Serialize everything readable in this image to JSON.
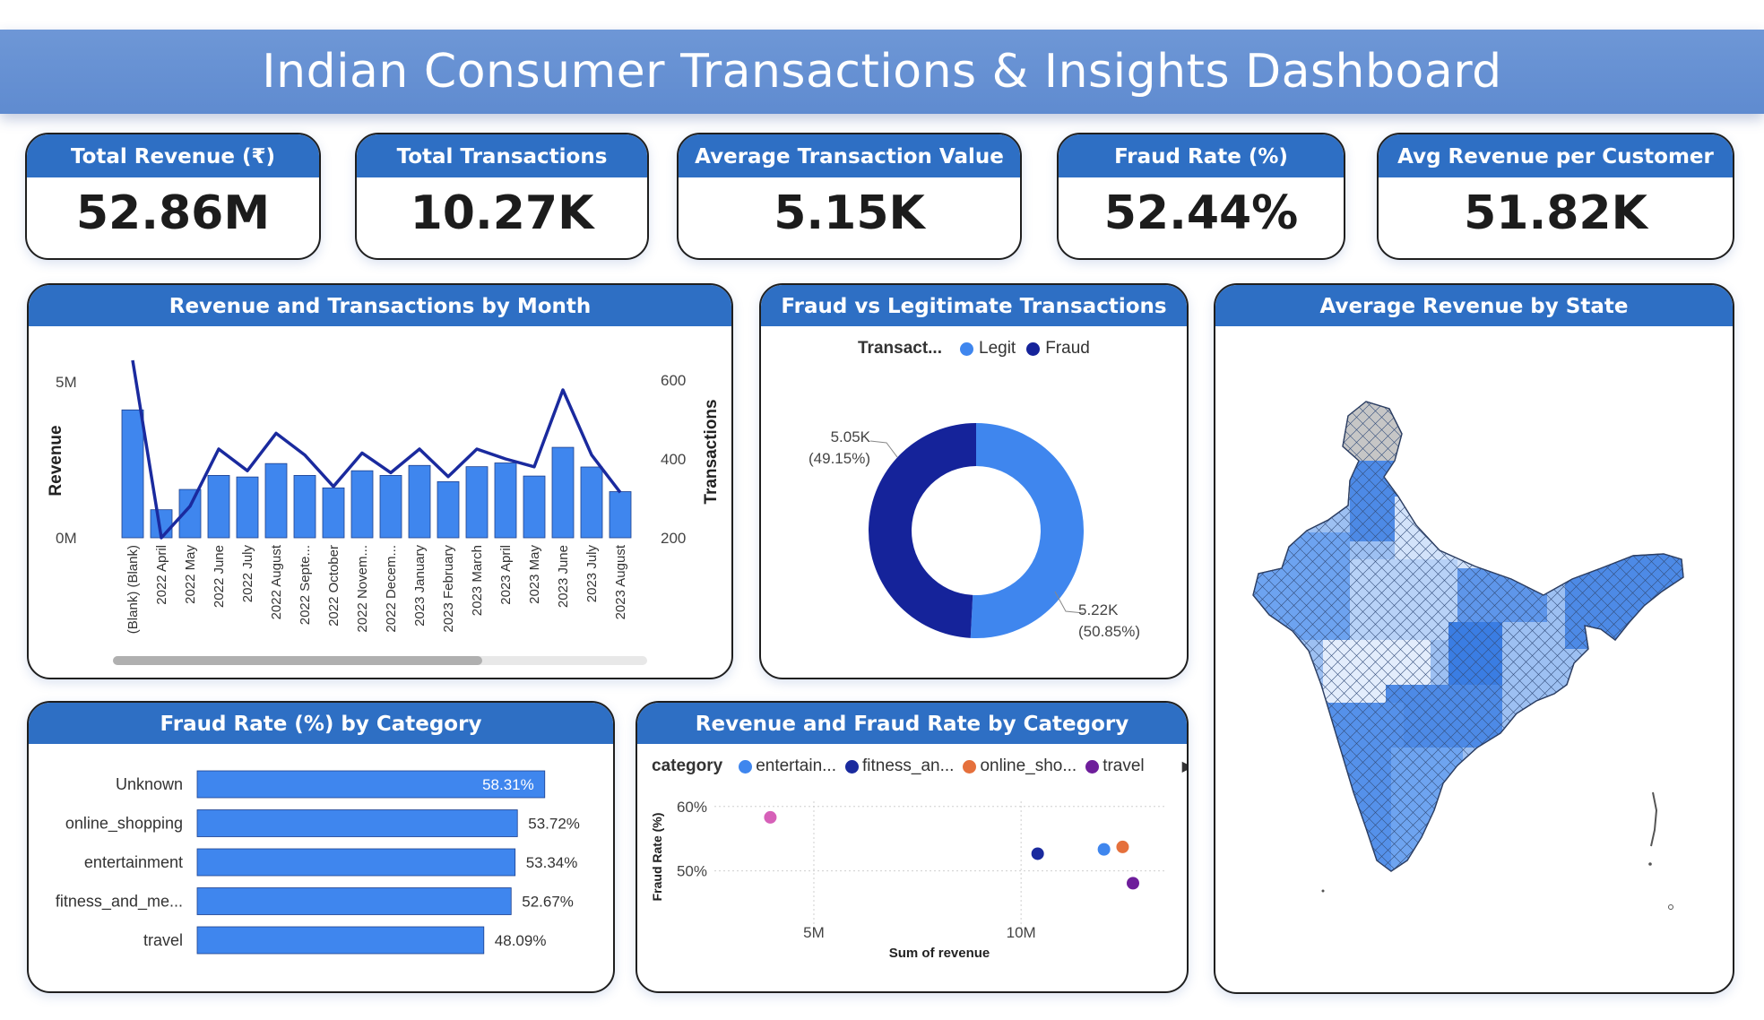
{
  "title": "Indian Consumer Transactions & Insights Dashboard",
  "colors": {
    "banner": "#6490d2",
    "header": "#2e6fc4",
    "bar": "#3f86ee",
    "line": "#1a2a9e",
    "legit": "#3f86ee",
    "fraud": "#15239a"
  },
  "kpis": [
    {
      "label": "Total Revenue (₹)",
      "value": "52.86M"
    },
    {
      "label": "Total Transactions",
      "value": "10.27K"
    },
    {
      "label": "Average Transaction Value (₹)",
      "value": "5.15K"
    },
    {
      "label": "Fraud Rate (%)",
      "value": "52.44%"
    },
    {
      "label": "Avg Revenue per Customer (₹)",
      "value": "51.82K"
    }
  ],
  "panels": {
    "monthly": {
      "title": "Revenue and Transactions by Month"
    },
    "fraud_vs_legit": {
      "title": "Fraud vs Legitimate Transactions"
    },
    "state": {
      "title": "Average Revenue by State"
    },
    "fraud_by_category": {
      "title": "Fraud Rate (%) by Category"
    },
    "revenue_fraud_category": {
      "title": "Revenue and Fraud Rate by Category"
    }
  },
  "chart_data": [
    {
      "type": "bar",
      "combo": "bar+line",
      "title": "Revenue and Transactions by Month",
      "categories": [
        "(Blank) (Blank)",
        "2022 April",
        "2022 May",
        "2022 June",
        "2022 July",
        "2022 August",
        "2022 Septe...",
        "2022 October",
        "2022 Novem...",
        "2022 Decem...",
        "2023 January",
        "2023 February",
        "2023 March",
        "2023 April",
        "2023 May",
        "2023 June",
        "2023 July",
        "2023 August"
      ],
      "series": [
        {
          "name": "Revenue",
          "type": "bar",
          "axis": "left",
          "values": [
            4100000,
            900000,
            1550000,
            2000000,
            1950000,
            2380000,
            2000000,
            1600000,
            2150000,
            2000000,
            2320000,
            1800000,
            2280000,
            2400000,
            1980000,
            2900000,
            2270000,
            1480000
          ]
        },
        {
          "name": "Transactions",
          "type": "line",
          "axis": "right",
          "values": [
            650,
            200,
            280,
            425,
            370,
            465,
            410,
            330,
            415,
            365,
            425,
            355,
            425,
            400,
            380,
            575,
            410,
            315
          ]
        }
      ],
      "ylabel": "Revenue",
      "y2label": "Transactions",
      "ylim": [
        0,
        5000000
      ],
      "y2lim": [
        200,
        600
      ],
      "yticks": [
        "5M",
        "0M"
      ],
      "y2ticks": [
        "600",
        "400",
        "200"
      ],
      "grid": false
    },
    {
      "type": "pie",
      "donut": true,
      "title": "Fraud vs Legitimate Transactions",
      "legend_title": "Transact...",
      "legend_position": "top",
      "slices": [
        {
          "name": "Legit",
          "value": 5220,
          "label": "5.22K",
          "pct_label": "(50.85%)"
        },
        {
          "name": "Fraud",
          "value": 5050,
          "label": "5.05K",
          "pct_label": "(49.15%)"
        }
      ]
    },
    {
      "type": "bar",
      "orientation": "horizontal",
      "title": "Fraud Rate (%) by Category",
      "categories": [
        "Unknown",
        "online_shopping",
        "entertainment",
        "fitness_and_me...",
        "travel"
      ],
      "values": [
        58.31,
        53.72,
        53.34,
        52.67,
        48.09
      ],
      "labels": [
        "58.31%",
        "53.72%",
        "53.34%",
        "52.67%",
        "48.09%"
      ],
      "xlim": [
        0,
        100
      ]
    },
    {
      "type": "scatter",
      "title": "Revenue and Fraud Rate by Category",
      "legend_title": "category",
      "legend_position": "top",
      "legend_labels": [
        "entertain...",
        "fitness_an...",
        "online_sho...",
        "travel"
      ],
      "series": [
        {
          "name": "Unknown",
          "color": "#d660b8",
          "x": 3950000,
          "y": 58.31
        },
        {
          "name": "fitness_and_me...",
          "color": "#1a2a9e",
          "x": 10400000,
          "y": 52.67
        },
        {
          "name": "entertainment",
          "color": "#3f86ee",
          "x": 12000000,
          "y": 53.34
        },
        {
          "name": "online_shopping",
          "color": "#e5703c",
          "x": 12450000,
          "y": 53.72
        },
        {
          "name": "travel",
          "color": "#6e1e9b",
          "x": 12700000,
          "y": 48.09
        }
      ],
      "xlabel": "Sum of revenue",
      "ylabel": "Fraud Rate (%)",
      "xticks": [
        {
          "v": 5000000,
          "label": "5M"
        },
        {
          "v": 10000000,
          "label": "10M"
        }
      ],
      "yticks": [
        {
          "v": 60,
          "label": "60%"
        },
        {
          "v": 50,
          "label": "50%"
        }
      ],
      "xlim": [
        2600000,
        13500000
      ],
      "ylim": [
        45.5,
        60.8
      ],
      "grid": true
    }
  ]
}
